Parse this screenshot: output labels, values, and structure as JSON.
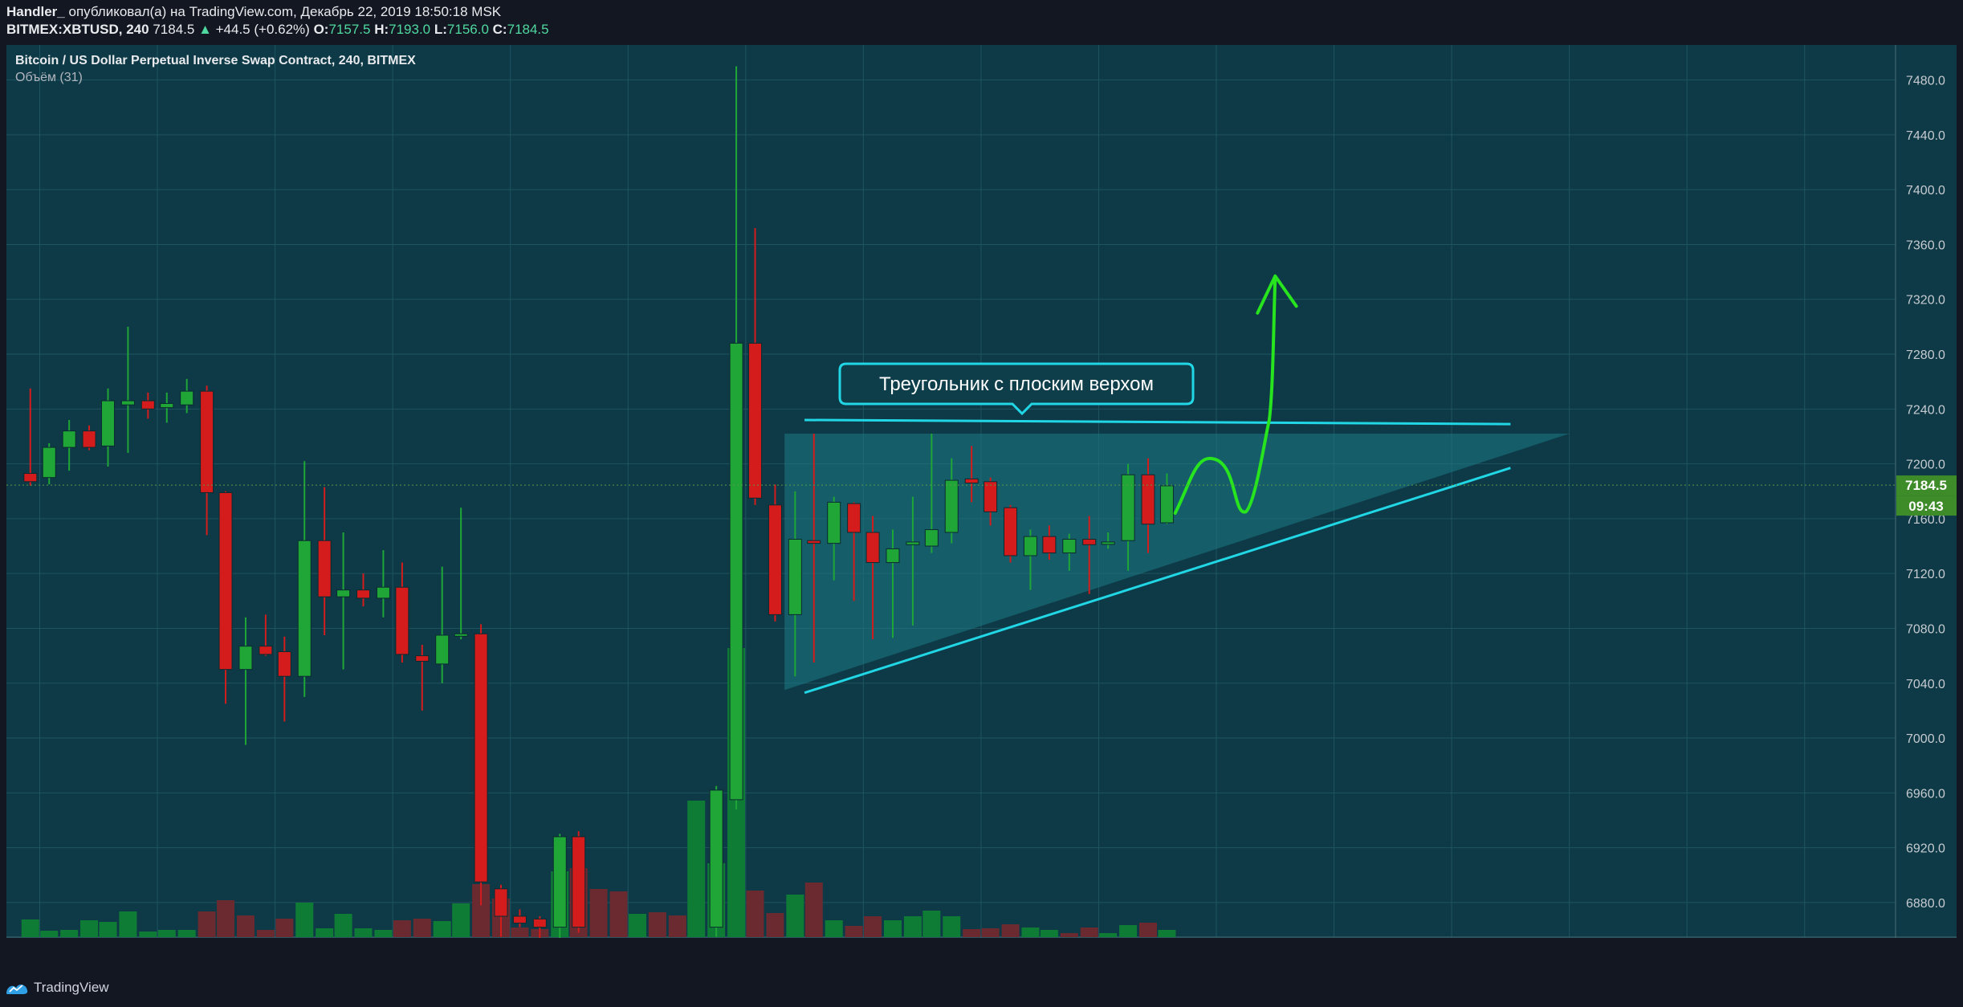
{
  "header": {
    "author": "Handler_",
    "published_text": "опубликовал(а) на TradingView.com, Декабрь 22, 2019 18:50:18 MSK",
    "symbol": "BITMEX:XBTUSD, 240",
    "last": "7184.5",
    "change": "+44.5 (+0.62%)",
    "o_label": "O:",
    "o_value": "7157.5",
    "h_label": "H:",
    "h_value": "7193.0",
    "l_label": "L:",
    "l_value": "7156.0",
    "c_label": "C:",
    "c_value": "7184.5"
  },
  "legend": {
    "title": "Bitcoin / US Dollar Perpetual Inverse Swap Contract, 240, BITMEX",
    "volume": "Объём (31)"
  },
  "footer": {
    "brand": "TradingView",
    "icon": "tradingview-logo-icon"
  },
  "colors": {
    "background": "#0d3a46",
    "up": "#1fa637",
    "down": "#d41c1c",
    "vol_up": "#0f7c36",
    "vol_down": "#6b2a30",
    "pattern_line": "#21d7e6",
    "forecast": "#27e41f",
    "price_label": "#3e8b29"
  },
  "chart_data": {
    "type": "candlestick",
    "ylim": [
      6860,
      7500
    ],
    "y_ticks": [
      "7480.0",
      "7440.0",
      "7400.0",
      "7360.0",
      "7320.0",
      "7280.0",
      "7240.0",
      "7200.0",
      "7160.0",
      "7120.0",
      "7080.0",
      "7040.0",
      "7000.0",
      "6960.0",
      "6920.0",
      "6880.0"
    ],
    "x_ticks": [
      "13",
      "14",
      "15",
      "16",
      "17",
      "18",
      "19",
      "20",
      "21",
      "22",
      "23",
      "24",
      "25",
      "26",
      "27",
      "28"
    ],
    "last_price_label": "7184.5",
    "countdown_label": "09:43",
    "candles": [
      {
        "x": 12.92,
        "o": 7193,
        "h": 7255,
        "l": 7184,
        "c": 7187
      },
      {
        "x": 13.08,
        "o": 7190,
        "h": 7215,
        "l": 7185,
        "c": 7212
      },
      {
        "x": 13.25,
        "o": 7212,
        "h": 7232,
        "l": 7195,
        "c": 7224
      },
      {
        "x": 13.42,
        "o": 7224,
        "h": 7228,
        "l": 7210,
        "c": 7212
      },
      {
        "x": 13.58,
        "o": 7213,
        "h": 7255,
        "l": 7198,
        "c": 7246
      },
      {
        "x": 13.75,
        "o": 7243,
        "h": 7300,
        "l": 7208,
        "c": 7246
      },
      {
        "x": 13.92,
        "o": 7246,
        "h": 7252,
        "l": 7233,
        "c": 7240
      },
      {
        "x": 14.08,
        "o": 7241,
        "h": 7252,
        "l": 7230,
        "c": 7244
      },
      {
        "x": 14.25,
        "o": 7243,
        "h": 7262,
        "l": 7237,
        "c": 7253
      },
      {
        "x": 14.42,
        "o": 7253,
        "h": 7257,
        "l": 7148,
        "c": 7179
      },
      {
        "x": 14.58,
        "o": 7179,
        "h": 7180,
        "l": 7025,
        "c": 7050
      },
      {
        "x": 14.75,
        "o": 7050,
        "h": 7088,
        "l": 6995,
        "c": 7067
      },
      {
        "x": 14.92,
        "o": 7067,
        "h": 7090,
        "l": 7060,
        "c": 7061
      },
      {
        "x": 15.08,
        "o": 7063,
        "h": 7074,
        "l": 7012,
        "c": 7045
      },
      {
        "x": 15.25,
        "o": 7045,
        "h": 7202,
        "l": 7030,
        "c": 7144
      },
      {
        "x": 15.42,
        "o": 7144,
        "h": 7183,
        "l": 7075,
        "c": 7103
      },
      {
        "x": 15.58,
        "o": 7103,
        "h": 7150,
        "l": 7050,
        "c": 7108
      },
      {
        "x": 15.75,
        "o": 7108,
        "h": 7120,
        "l": 7096,
        "c": 7102
      },
      {
        "x": 15.92,
        "o": 7102,
        "h": 7137,
        "l": 7088,
        "c": 7110
      },
      {
        "x": 16.08,
        "o": 7110,
        "h": 7128,
        "l": 7055,
        "c": 7061
      },
      {
        "x": 16.25,
        "o": 7060,
        "h": 7068,
        "l": 7020,
        "c": 7056
      },
      {
        "x": 16.42,
        "o": 7054,
        "h": 7125,
        "l": 7040,
        "c": 7075
      },
      {
        "x": 16.58,
        "o": 7075,
        "h": 7168,
        "l": 7072,
        "c": 7076
      },
      {
        "x": 16.75,
        "o": 7076,
        "h": 7083,
        "l": 6878,
        "c": 6895
      },
      {
        "x": 16.92,
        "o": 6890,
        "h": 6893,
        "l": 6855,
        "c": 6870
      },
      {
        "x": 17.08,
        "o": 6870,
        "h": 6875,
        "l": 6862,
        "c": 6865
      },
      {
        "x": 17.25,
        "o": 6868,
        "h": 6870,
        "l": 6850,
        "c": 6862
      },
      {
        "x": 17.42,
        "o": 6862,
        "h": 6930,
        "l": 6852,
        "c": 6928
      },
      {
        "x": 17.58,
        "o": 6928,
        "h": 6932,
        "l": 6858,
        "c": 6862
      },
      {
        "x": 18.75,
        "o": 6862,
        "h": 6965,
        "l": 6855,
        "c": 6962
      },
      {
        "x": 18.92,
        "o": 6955,
        "h": 7490,
        "l": 6948,
        "c": 7288
      },
      {
        "x": 19.08,
        "o": 7288,
        "h": 7372,
        "l": 7170,
        "c": 7175
      },
      {
        "x": 19.25,
        "o": 7170,
        "h": 7185,
        "l": 7085,
        "c": 7090
      },
      {
        "x": 19.42,
        "o": 7090,
        "h": 7180,
        "l": 7045,
        "c": 7145
      },
      {
        "x": 19.58,
        "o": 7144,
        "h": 7222,
        "l": 7055,
        "c": 7142
      },
      {
        "x": 19.75,
        "o": 7142,
        "h": 7176,
        "l": 7115,
        "c": 7172
      },
      {
        "x": 19.92,
        "o": 7171,
        "h": 7172,
        "l": 7100,
        "c": 7150
      },
      {
        "x": 20.08,
        "o": 7150,
        "h": 7162,
        "l": 7072,
        "c": 7128
      },
      {
        "x": 20.25,
        "o": 7128,
        "h": 7152,
        "l": 7073,
        "c": 7138
      },
      {
        "x": 20.42,
        "o": 7141,
        "h": 7176,
        "l": 7082,
        "c": 7143
      },
      {
        "x": 20.58,
        "o": 7140,
        "h": 7222,
        "l": 7135,
        "c": 7152
      },
      {
        "x": 20.75,
        "o": 7150,
        "h": 7204,
        "l": 7142,
        "c": 7188
      },
      {
        "x": 20.92,
        "o": 7189,
        "h": 7213,
        "l": 7172,
        "c": 7186
      },
      {
        "x": 21.08,
        "o": 7187,
        "h": 7190,
        "l": 7155,
        "c": 7165
      },
      {
        "x": 21.25,
        "o": 7168,
        "h": 7170,
        "l": 7128,
        "c": 7133
      },
      {
        "x": 21.42,
        "o": 7133,
        "h": 7152,
        "l": 7108,
        "c": 7147
      },
      {
        "x": 21.58,
        "o": 7147,
        "h": 7155,
        "l": 7130,
        "c": 7135
      },
      {
        "x": 21.75,
        "o": 7135,
        "h": 7149,
        "l": 7122,
        "c": 7145
      },
      {
        "x": 21.92,
        "o": 7145,
        "h": 7162,
        "l": 7105,
        "c": 7141
      },
      {
        "x": 22.08,
        "o": 7142,
        "h": 7150,
        "l": 7138,
        "c": 7143
      },
      {
        "x": 22.25,
        "o": 7144,
        "h": 7200,
        "l": 7122,
        "c": 7192
      },
      {
        "x": 22.42,
        "o": 7192,
        "h": 7204,
        "l": 7135,
        "c": 7156
      },
      {
        "x": 22.58,
        "o": 7157,
        "h": 7193,
        "l": 7156,
        "c": 7184
      }
    ],
    "volume": [
      {
        "x": 12.92,
        "v": 0.22,
        "d": "up"
      },
      {
        "x": 13.08,
        "v": 0.08,
        "d": "up"
      },
      {
        "x": 13.25,
        "v": 0.09,
        "d": "up"
      },
      {
        "x": 13.42,
        "v": 0.21,
        "d": "up"
      },
      {
        "x": 13.58,
        "v": 0.19,
        "d": "up"
      },
      {
        "x": 13.75,
        "v": 0.32,
        "d": "up"
      },
      {
        "x": 13.92,
        "v": 0.07,
        "d": "up"
      },
      {
        "x": 14.08,
        "v": 0.09,
        "d": "up"
      },
      {
        "x": 14.25,
        "v": 0.09,
        "d": "up"
      },
      {
        "x": 14.42,
        "v": 0.32,
        "d": "down"
      },
      {
        "x": 14.58,
        "v": 0.46,
        "d": "down"
      },
      {
        "x": 14.75,
        "v": 0.27,
        "d": "down"
      },
      {
        "x": 14.92,
        "v": 0.09,
        "d": "down"
      },
      {
        "x": 15.08,
        "v": 0.23,
        "d": "down"
      },
      {
        "x": 15.25,
        "v": 0.43,
        "d": "up"
      },
      {
        "x": 15.42,
        "v": 0.11,
        "d": "up"
      },
      {
        "x": 15.58,
        "v": 0.29,
        "d": "up"
      },
      {
        "x": 15.75,
        "v": 0.11,
        "d": "up"
      },
      {
        "x": 15.92,
        "v": 0.09,
        "d": "up"
      },
      {
        "x": 16.08,
        "v": 0.21,
        "d": "down"
      },
      {
        "x": 16.25,
        "v": 0.23,
        "d": "down"
      },
      {
        "x": 16.42,
        "v": 0.2,
        "d": "up"
      },
      {
        "x": 16.58,
        "v": 0.42,
        "d": "up"
      },
      {
        "x": 16.75,
        "v": 0.66,
        "d": "down"
      },
      {
        "x": 16.92,
        "v": 0.48,
        "d": "down"
      },
      {
        "x": 17.08,
        "v": 0.12,
        "d": "down"
      },
      {
        "x": 17.25,
        "v": 0.1,
        "d": "down"
      },
      {
        "x": 17.42,
        "v": 0.82,
        "d": "up"
      },
      {
        "x": 17.58,
        "v": 0.86,
        "d": "down"
      },
      {
        "x": 17.75,
        "v": 0.6,
        "d": "down"
      },
      {
        "x": 17.92,
        "v": 0.57,
        "d": "down"
      },
      {
        "x": 18.08,
        "v": 0.29,
        "d": "up"
      },
      {
        "x": 18.25,
        "v": 0.31,
        "d": "down"
      },
      {
        "x": 18.42,
        "v": 0.27,
        "d": "down"
      },
      {
        "x": 18.58,
        "v": 1.7,
        "d": "up"
      },
      {
        "x": 18.75,
        "v": 0.92,
        "d": "up"
      },
      {
        "x": 18.92,
        "v": 3.6,
        "d": "up"
      },
      {
        "x": 19.08,
        "v": 0.58,
        "d": "down"
      },
      {
        "x": 19.25,
        "v": 0.3,
        "d": "down"
      },
      {
        "x": 19.42,
        "v": 0.53,
        "d": "up"
      },
      {
        "x": 19.58,
        "v": 0.68,
        "d": "down"
      },
      {
        "x": 19.75,
        "v": 0.21,
        "d": "up"
      },
      {
        "x": 19.92,
        "v": 0.14,
        "d": "down"
      },
      {
        "x": 20.08,
        "v": 0.26,
        "d": "down"
      },
      {
        "x": 20.25,
        "v": 0.21,
        "d": "up"
      },
      {
        "x": 20.42,
        "v": 0.26,
        "d": "up"
      },
      {
        "x": 20.58,
        "v": 0.33,
        "d": "up"
      },
      {
        "x": 20.75,
        "v": 0.26,
        "d": "up"
      },
      {
        "x": 20.92,
        "v": 0.1,
        "d": "down"
      },
      {
        "x": 21.08,
        "v": 0.11,
        "d": "down"
      },
      {
        "x": 21.25,
        "v": 0.16,
        "d": "down"
      },
      {
        "x": 21.42,
        "v": 0.12,
        "d": "up"
      },
      {
        "x": 21.58,
        "v": 0.09,
        "d": "up"
      },
      {
        "x": 21.75,
        "v": 0.05,
        "d": "down"
      },
      {
        "x": 21.92,
        "v": 0.12,
        "d": "down"
      },
      {
        "x": 22.08,
        "v": 0.05,
        "d": "up"
      },
      {
        "x": 22.25,
        "v": 0.15,
        "d": "up"
      },
      {
        "x": 22.42,
        "v": 0.18,
        "d": "down"
      },
      {
        "x": 22.58,
        "v": 0.09,
        "d": "up"
      }
    ],
    "annotations": {
      "callout_text": "Треугольник с плоским верхом",
      "resistance_line": [
        [
          19.5,
          7232
        ],
        [
          25.5,
          7229
        ]
      ],
      "support_line": [
        [
          19.5,
          7033
        ],
        [
          25.5,
          7197
        ]
      ],
      "triangle_fill": [
        [
          19.33,
          7222
        ],
        [
          26.0,
          7222
        ],
        [
          19.33,
          7035
        ]
      ],
      "forecast_path": [
        [
          22.65,
          7164
        ],
        [
          23.0,
          7203
        ],
        [
          23.25,
          7165
        ],
        [
          23.45,
          7232
        ],
        [
          23.5,
          7335
        ]
      ],
      "forecast_arrowhead": [
        [
          23.35,
          7310
        ],
        [
          23.5,
          7337
        ],
        [
          23.68,
          7315
        ]
      ]
    }
  }
}
